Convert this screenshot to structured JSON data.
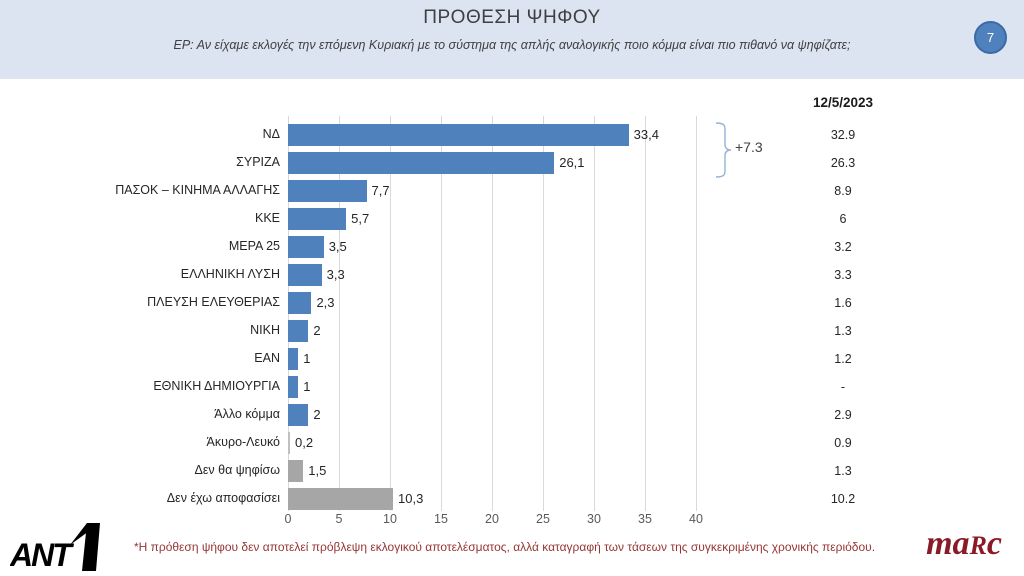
{
  "page": {
    "badge": "7"
  },
  "header": {
    "title": "ΠΡΟΘΕΣΗ ΨΗΦΟΥ",
    "subtitle": "ΕΡ: Αν είχαμε εκλογές την επόμενη Κυριακή με το σύστημα της απλής αναλογικής ποιο κόμμα είναι πιο πιθανό να ψηφίζατε;"
  },
  "chart_data": {
    "type": "bar",
    "orientation": "horizontal",
    "title": "ΠΡΟΘΕΣΗ ΨΗΦΟΥ",
    "categories": [
      "ΝΔ",
      "ΣΥΡΙΖΑ",
      "ΠΑΣΟΚ – ΚΙΝΗΜΑ ΑΛΛΑΓΗΣ",
      "ΚΚΕ",
      "ΜΕΡΑ 25",
      "ΕΛΛΗΝΙΚΗ ΛΥΣΗ",
      "ΠΛΕΥΣΗ ΕΛΕΥΘΕΡΙΑΣ",
      "ΝΙΚΗ",
      "ΕΑΝ",
      "ΕΘΝΙΚΗ ΔΗΜΙΟΥΡΓΙΑ",
      "Άλλο κόμμα",
      "Άκυρο-Λευκό",
      "Δεν θα ψηφίσω",
      "Δεν έχω αποφασίσει"
    ],
    "values": [
      33.4,
      26.1,
      7.7,
      5.7,
      3.5,
      3.3,
      2.3,
      2,
      1,
      1,
      2,
      0.2,
      1.5,
      10.3
    ],
    "value_labels": [
      "33,4",
      "26,1",
      "7,7",
      "5,7",
      "3,5",
      "3,3",
      "2,3",
      "2",
      "1",
      "1",
      "2",
      "0,2",
      "1,5",
      "10,3"
    ],
    "bar_colors": [
      "#4f81bd",
      "#4f81bd",
      "#4f81bd",
      "#4f81bd",
      "#4f81bd",
      "#4f81bd",
      "#4f81bd",
      "#4f81bd",
      "#4f81bd",
      "#4f81bd",
      "#4f81bd",
      "#c0c0c0",
      "#a6a6a6",
      "#a6a6a6"
    ],
    "x_ticks": [
      "0",
      "5",
      "10",
      "15",
      "20",
      "25",
      "30",
      "35",
      "40"
    ],
    "xlim": [
      0,
      40
    ],
    "grid": true,
    "annotation": {
      "label": "+7.3",
      "rows": [
        0,
        1
      ]
    },
    "comparison_column": {
      "header": "12/5/2023",
      "values": [
        "32.9",
        "26.3",
        "8.9",
        "6",
        "3.2",
        "3.3",
        "1.6",
        "1.3",
        "1.2",
        "-",
        "2.9",
        "0.9",
        "1.3",
        "10.2"
      ]
    }
  },
  "footer": {
    "note": "*Η πρόθεση ψήφου δεν αποτελεί πρόβλεψη εκλογικού αποτελέσματος, αλλά καταγραφή των τάσεων της συγκεκριμένης χρονικής περιόδου.",
    "logo_left_text": "ANT",
    "logo_left_name": "ANT1",
    "logo_right_parts": [
      "ma",
      "R",
      "c"
    ]
  },
  "colors": {
    "bar_blue": "#4f81bd",
    "bar_gray": "#a6a6a6",
    "bar_gray_light": "#c0c0c0",
    "header_bg": "#dbe4f0",
    "gridline": "#d9d9d9",
    "note_red": "#963634",
    "marc_red": "#8b1a28",
    "badge_fill": "#4f81bd",
    "badge_border": "#3a6aa8",
    "bracket_blue": "#95b3d7"
  }
}
